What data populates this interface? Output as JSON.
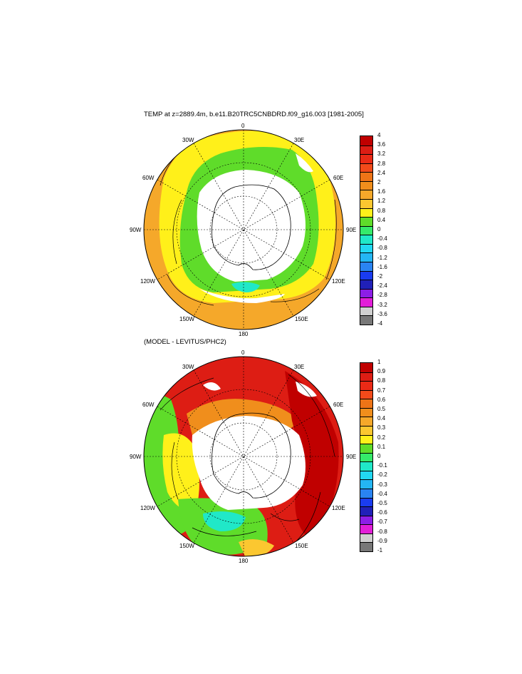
{
  "panels": [
    {
      "title": "TEMP at z=2889.4m, b.e11.B20TRC5CNBDRD.f09_g16.003 [1981-2005]",
      "longitude_labels": {
        "top": "0",
        "top_left": "30W",
        "top_right": "30E",
        "upper_left": "60W",
        "upper_right": "60E",
        "left": "90W",
        "right": "90E",
        "lower_left": "120W",
        "lower_right": "120E",
        "bottom_left": "150W",
        "bottom_right": "150E",
        "bottom": "180"
      },
      "colorbar": {
        "labels": [
          "4",
          "3.6",
          "3.2",
          "2.8",
          "2.4",
          "2",
          "1.6",
          "1.2",
          "0.8",
          "0.4",
          "0",
          "-0.4",
          "-0.8",
          "-1.2",
          "-1.6",
          "-2",
          "-2.4",
          "-2.8",
          "-3.2",
          "-3.6",
          "-4"
        ],
        "colors": [
          "#c00000",
          "#dd1d14",
          "#ea2a16",
          "#f24a1a",
          "#ee7417",
          "#f08e1c",
          "#f5a82a",
          "#fbc730",
          "#fff01a",
          "#5fdc2a",
          "#35ea6a",
          "#20e8c8",
          "#22d8f2",
          "#24b6f4",
          "#2a84f2",
          "#1a3cf0",
          "#2020b8",
          "#8c1ee6",
          "#e21ed8",
          "#d0d0d0",
          "#787878"
        ]
      }
    },
    {
      "title": "(MODEL - LEVITUS/PHC2)",
      "longitude_labels": {
        "top": "0",
        "top_left": "30W",
        "top_right": "30E",
        "upper_left": "60W",
        "upper_right": "60E",
        "left": "90W",
        "right": "90E",
        "lower_left": "120W",
        "lower_right": "120E",
        "bottom_left": "150W",
        "bottom_right": "150E",
        "bottom": "180"
      },
      "colorbar": {
        "labels": [
          "1",
          "0.9",
          "0.8",
          "0.7",
          "0.6",
          "0.5",
          "0.4",
          "0.3",
          "0.2",
          "0.1",
          "0",
          "-0.1",
          "-0.2",
          "-0.3",
          "-0.4",
          "-0.5",
          "-0.6",
          "-0.7",
          "-0.8",
          "-0.9",
          "-1"
        ],
        "colors": [
          "#c00000",
          "#dd1d14",
          "#ea2a16",
          "#f24a1a",
          "#ee7417",
          "#f08e1c",
          "#f5a82a",
          "#fbc730",
          "#fff01a",
          "#5fdc2a",
          "#35ea6a",
          "#20e8c8",
          "#22d8f2",
          "#24b6f4",
          "#2a84f2",
          "#1a3cf0",
          "#2020b8",
          "#8c1ee6",
          "#e21ed8",
          "#d0d0d0",
          "#787878"
        ]
      }
    }
  ],
  "field_colors": {
    "land": "#ffffff",
    "top": {
      "outer": "#f5a82a",
      "mid": "#fff01a",
      "inner": "#5fdc2a",
      "cold": "#20e8c8"
    },
    "bottom": {
      "red": "#dd1d14",
      "darkred": "#c00000",
      "orange": "#f08e1c",
      "yellow": "#fff01a",
      "green": "#5fdc2a",
      "cyan": "#20e8c8",
      "ltorange": "#fbc730"
    }
  }
}
